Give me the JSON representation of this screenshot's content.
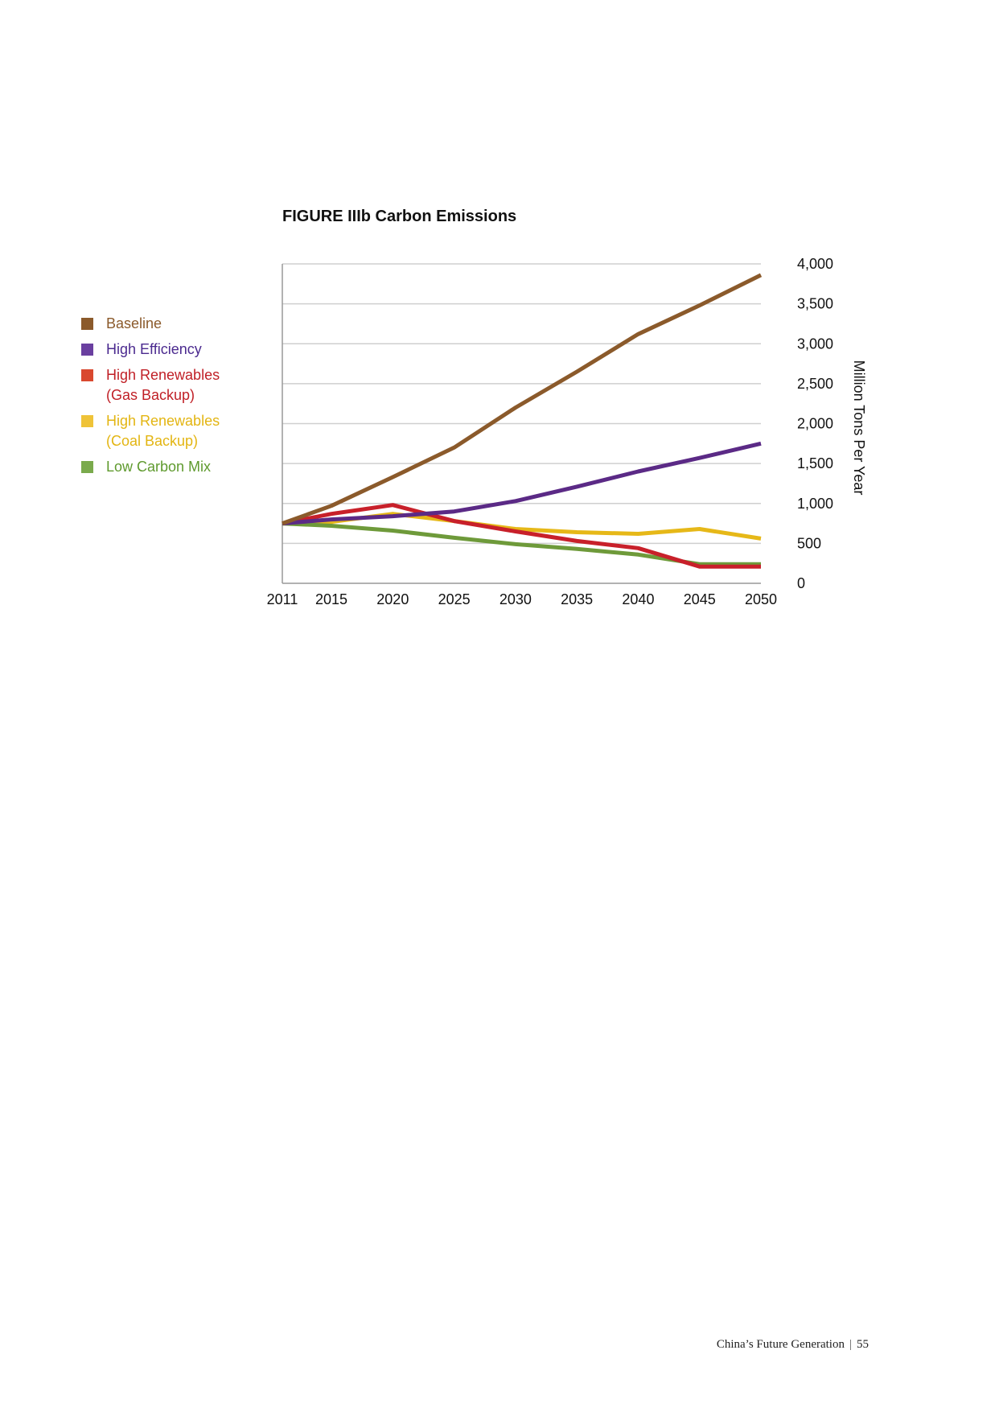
{
  "chart_data": {
    "type": "line",
    "title": "FIGURE IIIb  Carbon Emissions",
    "ylabel": "Million Tons Per Year",
    "xlabel": "",
    "xlim": [
      2011,
      2050
    ],
    "ylim": [
      0,
      4000
    ],
    "x_ticks": [
      "2011",
      "2015",
      "2020",
      "2025",
      "2030",
      "2035",
      "2040",
      "2045",
      "2050"
    ],
    "y_ticks": [
      "0",
      "500",
      "1,000",
      "1,500",
      "2,000",
      "2,500",
      "3,000",
      "3,500",
      "4,000"
    ],
    "y_axis_side": "right",
    "grid": true,
    "legend_position": "left",
    "x": [
      2011,
      2015,
      2020,
      2025,
      2030,
      2035,
      2040,
      2045,
      2050
    ],
    "series": [
      {
        "name": "Baseline",
        "color": "#8b5a2b",
        "text_color": "#8b5a2b",
        "values": [
          750,
          970,
          1330,
          1700,
          2200,
          2650,
          3120,
          3480,
          3860
        ]
      },
      {
        "name": "High Efficiency",
        "color": "#5b2a86",
        "text_color": "#4b2a8f",
        "values": [
          750,
          800,
          840,
          900,
          1030,
          1210,
          1400,
          1570,
          1750
        ]
      },
      {
        "name": "High Renewables (Gas Backup)",
        "color": "#c8202a",
        "text_color": "#c01f26",
        "values": [
          750,
          870,
          980,
          780,
          650,
          530,
          440,
          210,
          210
        ]
      },
      {
        "name": "High Renewables (Coal Backup)",
        "color": "#e6b818",
        "text_color": "#e3b512",
        "values": [
          750,
          770,
          870,
          780,
          680,
          640,
          620,
          680,
          560
        ]
      },
      {
        "name": "Low Carbon Mix",
        "color": "#6e9a3a",
        "text_color": "#5f9a2e",
        "values": [
          750,
          720,
          660,
          570,
          490,
          430,
          360,
          240,
          240
        ]
      }
    ],
    "legend": [
      {
        "label": "Baseline",
        "swatch_color": "#8b5a2b",
        "text_color": "#8b5a2b"
      },
      {
        "label": "High Efficiency",
        "swatch_color": "#6a3fa0",
        "text_color": "#4b2a8f"
      },
      {
        "label": "High Renewables\n(Gas Backup)",
        "swatch_color": "#d9482f",
        "text_color": "#c01f26"
      },
      {
        "label": "High Renewables\n(Coal Backup)",
        "swatch_color": "#efc338",
        "text_color": "#e3b512"
      },
      {
        "label": "Low Carbon Mix",
        "swatch_color": "#7aaa4c",
        "text_color": "#5f9a2e"
      }
    ]
  },
  "footer": {
    "publication": "China’s Future Generation",
    "separator": "|",
    "page_number": "55"
  }
}
